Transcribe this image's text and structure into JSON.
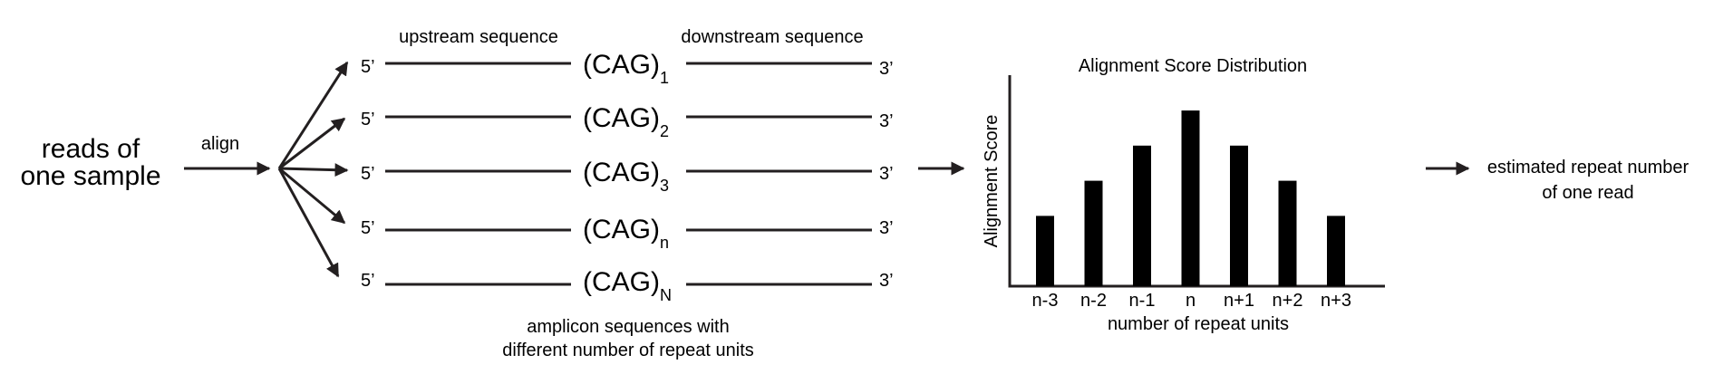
{
  "input": {
    "line1": "reads of",
    "line2": "one sample"
  },
  "align_label": "align",
  "header": {
    "upstream": "upstream sequence",
    "downstream": "downstream sequence"
  },
  "amplicons": [
    {
      "prime5": "5’",
      "repeat": "(CAG)",
      "sub": "1",
      "prime3": "3’"
    },
    {
      "prime5": "5’",
      "repeat": "(CAG)",
      "sub": "2",
      "prime3": "3’"
    },
    {
      "prime5": "5’",
      "repeat": "(CAG)",
      "sub": "3",
      "prime3": "3’"
    },
    {
      "prime5": "5’",
      "repeat": "(CAG)",
      "sub": "n",
      "prime3": "3’"
    },
    {
      "prime5": "5’",
      "repeat": "(CAG)",
      "sub": "N",
      "prime3": "3’"
    }
  ],
  "amplicon_caption": {
    "line1": "amplicon sequences with",
    "line2": "different number of repeat units"
  },
  "chart_data": {
    "type": "bar",
    "title": "Alignment Score Distribution",
    "xlabel": "number of repeat units",
    "ylabel": "Alignment Score",
    "categories": [
      "n-3",
      "n-2",
      "n-1",
      "n",
      "n+1",
      "n+2",
      "n+3"
    ],
    "values": [
      2,
      3,
      4,
      5,
      4,
      3,
      2
    ],
    "ylim": [
      0,
      5.2
    ],
    "grid": false,
    "bar_color": "#000000"
  },
  "output": {
    "line1": "estimated repeat number",
    "line2": "of one read"
  }
}
